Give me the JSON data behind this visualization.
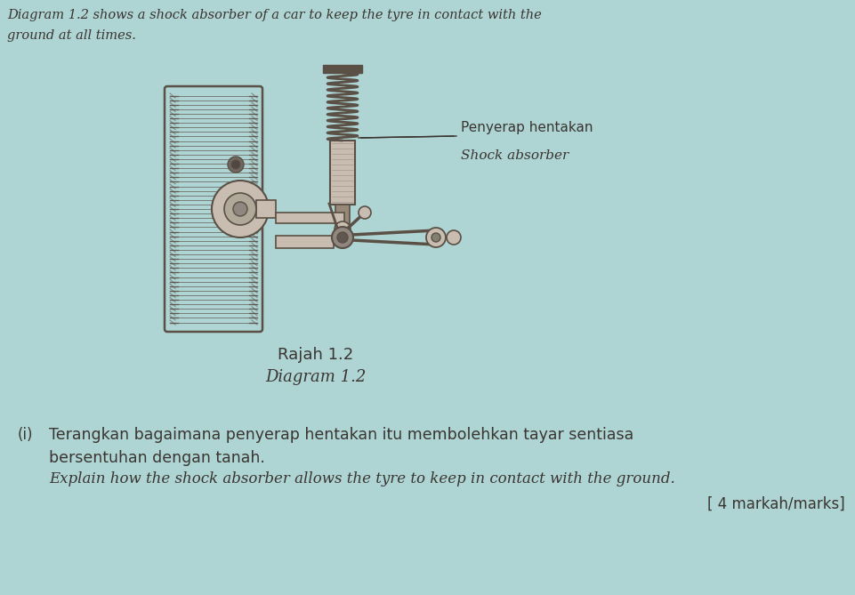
{
  "bg_color": "#aed4d4",
  "title_line1": "Diagram 1.2 shows a shock absorber of a car to keep the tyre in contact with the",
  "title_line2": "ground at all times.",
  "label_line1": "Penyerap hentakan",
  "label_line2": "Shock absorber",
  "caption_line1": "Rajah 1.2",
  "caption_line2": "Diagram 1.2",
  "question_marker": "(i)",
  "q_text_line1": "Terangkan bagaimana penyerap hentakan itu membolehkan tayar sentiasa",
  "q_text_line2": "bersentuhan dengan tanah.",
  "q_italic_line": "Explain how the shock absorber allows the tyre to keep in contact with the ground.",
  "marks_text": "[ 4 markah/marks]",
  "text_color": "#3a3530",
  "drawing_color": "#5a5045",
  "drawing_light": "#8a8078",
  "drawing_fill": "#c8bdb0"
}
